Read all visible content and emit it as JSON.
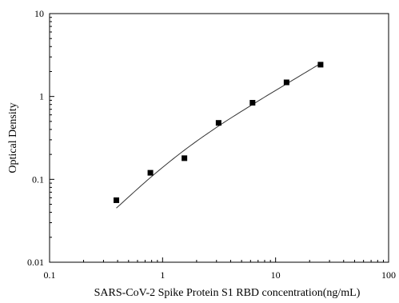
{
  "chart_data": {
    "type": "scatter",
    "title": "",
    "xlabel": "SARS-CoV-2 Spike Protein S1 RBD concentration(ng/mL)",
    "ylabel": "Optical Density",
    "x_scale": "log",
    "y_scale": "log",
    "xlim": [
      0.1,
      100
    ],
    "ylim": [
      0.01,
      10
    ],
    "x_ticks": [
      0.1,
      1,
      10,
      100
    ],
    "x_tick_labels": [
      "0.1",
      "1",
      "10",
      "100"
    ],
    "y_ticks": [
      0.01,
      0.1,
      1,
      10
    ],
    "y_tick_labels": [
      "0.01",
      "0.1",
      "1",
      "10"
    ],
    "grid": false,
    "legend": "none",
    "marker_color": "#000000",
    "series": [
      {
        "points": [
          {
            "x": 0.39,
            "y": 0.056
          },
          {
            "x": 0.78,
            "y": 0.12
          },
          {
            "x": 1.56,
            "y": 0.18
          },
          {
            "x": 3.13,
            "y": 0.48
          },
          {
            "x": 6.25,
            "y": 0.84
          },
          {
            "x": 12.5,
            "y": 1.48
          },
          {
            "x": 25,
            "y": 2.42
          }
        ]
      }
    ],
    "fit_curve": {
      "x_range": [
        0.39,
        25
      ],
      "points": [
        {
          "x": 0.39,
          "y": 0.045
        },
        {
          "x": 0.78,
          "y": 0.105
        },
        {
          "x": 1.56,
          "y": 0.225
        },
        {
          "x": 3.13,
          "y": 0.44
        },
        {
          "x": 6.25,
          "y": 0.8
        },
        {
          "x": 12.5,
          "y": 1.42
        },
        {
          "x": 25,
          "y": 2.5
        }
      ]
    }
  }
}
